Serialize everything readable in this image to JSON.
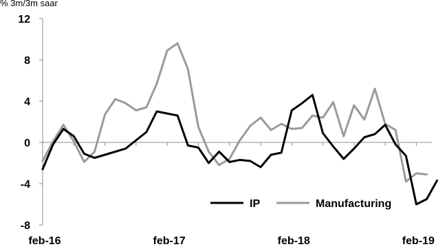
{
  "chart_data": {
    "type": "line",
    "ylabel": "% 3m/3m saar",
    "ylim": [
      -8,
      12
    ],
    "yticks": [
      12,
      8,
      4,
      0,
      -4,
      -8
    ],
    "x_tick_labels": [
      "feb-16",
      "feb-17",
      "feb-18",
      "feb-19"
    ],
    "x_tick_index": [
      0,
      12,
      24,
      36
    ],
    "grid": false,
    "legend": "bottom-right",
    "series": [
      {
        "name": "IP",
        "color": "#000000",
        "values": [
          -2.6,
          -0.2,
          1.3,
          0.6,
          -1.1,
          -1.5,
          -1.2,
          -0.9,
          -0.6,
          0.2,
          1.0,
          3.0,
          2.8,
          2.6,
          -0.3,
          -0.5,
          -2.0,
          -0.9,
          -1.9,
          -1.7,
          -1.8,
          -2.4,
          -1.2,
          -1.0,
          3.1,
          3.8,
          4.6,
          0.9,
          -0.4,
          -1.6,
          -0.6,
          0.5,
          0.8,
          1.7,
          -0.2,
          -1.3,
          -6.0,
          -5.5,
          -3.7
        ]
      },
      {
        "name": "Manufacturing",
        "color": "#9a9a9a",
        "values": [
          -1.8,
          0.1,
          1.7,
          0.1,
          -1.9,
          -0.9,
          2.7,
          4.2,
          3.8,
          3.1,
          3.4,
          5.7,
          8.9,
          9.6,
          7.1,
          1.5,
          -0.9,
          -2.2,
          -1.6,
          0.2,
          1.6,
          2.4,
          1.2,
          1.8,
          1.3,
          1.4,
          2.6,
          2.4,
          3.9,
          0.6,
          3.6,
          2.2,
          5.2,
          1.8,
          1.2,
          -3.8,
          -3.0,
          -3.1
        ]
      }
    ]
  }
}
